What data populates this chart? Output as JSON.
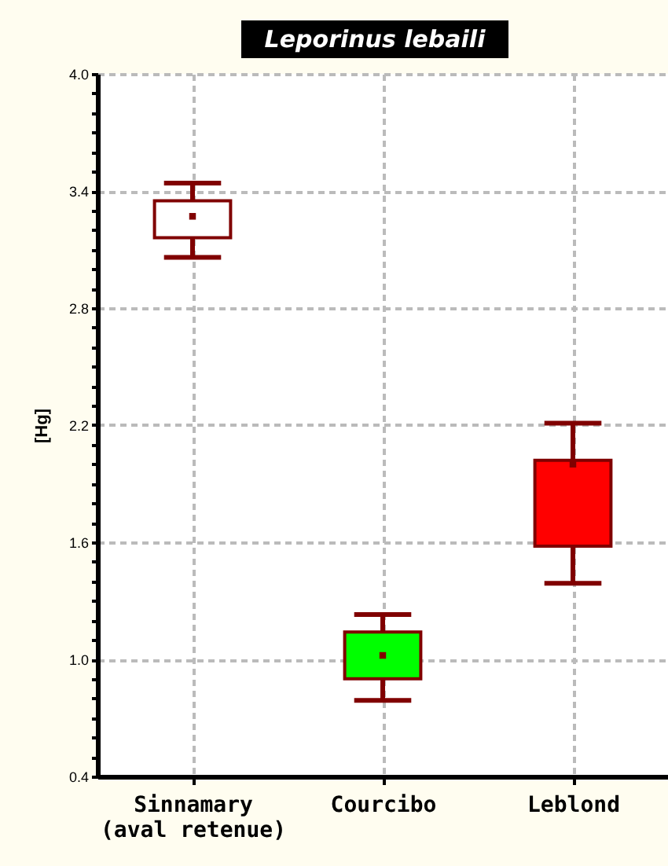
{
  "chart_data": {
    "type": "box",
    "title": "Leporinus lebaili",
    "ylabel": "[Hg]",
    "categories": [
      "Sinnamary\n(aval retenue)",
      "Courcibo",
      "Leblond"
    ],
    "colors": [
      "#ffffff",
      "#00ff00",
      "#ff0000"
    ],
    "series": [
      {
        "color": "#800000",
        "boxes": [
          {
            "low": 3.06,
            "q1": 3.16,
            "median": 3.27,
            "q3": 3.35,
            "high": 3.44
          },
          {
            "low": 0.79,
            "q1": 0.9,
            "median": 1.02,
            "q3": 1.14,
            "high": 1.23
          },
          {
            "low": 1.39,
            "q1": 1.58,
            "median": 2.0,
            "q3": 2.02,
            "high": 2.21
          }
        ]
      }
    ],
    "ylim": [
      0.4,
      4.0
    ],
    "yticks": [
      {
        "value": 0.4,
        "label": "0.4"
      },
      {
        "value": 0.5,
        "label": null
      },
      {
        "value": 0.6,
        "label": null
      },
      {
        "value": 0.7,
        "label": null
      },
      {
        "value": 0.8,
        "label": null
      },
      {
        "value": 0.9,
        "label": null
      },
      {
        "value": 1.0,
        "label": "1.0"
      },
      {
        "value": 1.1,
        "label": null
      },
      {
        "value": 1.2,
        "label": null
      },
      {
        "value": 1.3,
        "label": null
      },
      {
        "value": 1.4,
        "label": null
      },
      {
        "value": 1.5,
        "label": null
      },
      {
        "value": 1.6,
        "label": "1.6"
      },
      {
        "value": 1.7,
        "label": null
      },
      {
        "value": 1.8,
        "label": null
      },
      {
        "value": 1.9,
        "label": null
      },
      {
        "value": 2.0,
        "label": null
      },
      {
        "value": 2.1,
        "label": null
      },
      {
        "value": 2.2,
        "label": "2.2"
      },
      {
        "value": 2.3,
        "label": null
      },
      {
        "value": 2.4,
        "label": null
      },
      {
        "value": 2.5,
        "label": null
      },
      {
        "value": 2.6,
        "label": null
      },
      {
        "value": 2.7,
        "label": null
      },
      {
        "value": 2.8,
        "label": "2.8"
      },
      {
        "value": 2.9,
        "label": null
      },
      {
        "value": 3.0,
        "label": null
      },
      {
        "value": 3.1,
        "label": null
      },
      {
        "value": 3.2,
        "label": null
      },
      {
        "value": 3.3,
        "label": null
      },
      {
        "value": 3.4,
        "label": "3.4"
      },
      {
        "value": 3.5,
        "label": null
      },
      {
        "value": 3.6,
        "label": null
      },
      {
        "value": 3.7,
        "label": null
      },
      {
        "value": 3.8,
        "label": null
      },
      {
        "value": 3.9,
        "label": null
      },
      {
        "value": 4.0,
        "label": "4.0"
      }
    ],
    "grid": true
  }
}
